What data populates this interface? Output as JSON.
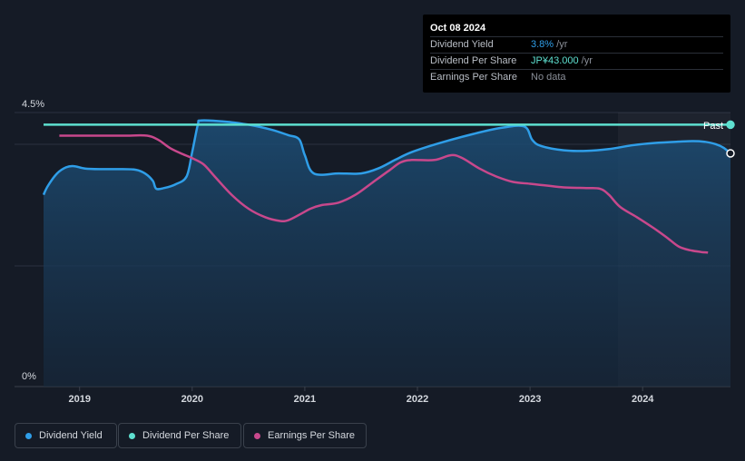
{
  "chart_data": {
    "type": "line",
    "y_axis_labels": [
      "4.5%",
      "0%"
    ],
    "ylim": [
      0,
      4.5
    ],
    "x_ticks": [
      "2019",
      "2020",
      "2021",
      "2022",
      "2023",
      "2024"
    ],
    "xlim": [
      2018.68,
      2024.78
    ],
    "past_label": "Past",
    "series": [
      {
        "name": "Dividend Yield",
        "color": "#2f9ee8",
        "unit": "%",
        "points": [
          [
            2018.68,
            3.15
          ],
          [
            2018.72,
            3.3
          ],
          [
            2018.8,
            3.5
          ],
          [
            2018.88,
            3.6
          ],
          [
            2018.95,
            3.62
          ],
          [
            2019.05,
            3.58
          ],
          [
            2019.2,
            3.57
          ],
          [
            2019.35,
            3.57
          ],
          [
            2019.5,
            3.56
          ],
          [
            2019.58,
            3.5
          ],
          [
            2019.65,
            3.38
          ],
          [
            2019.68,
            3.25
          ],
          [
            2019.75,
            3.26
          ],
          [
            2019.85,
            3.32
          ],
          [
            2019.95,
            3.45
          ],
          [
            2020.0,
            3.85
          ],
          [
            2020.05,
            4.3
          ],
          [
            2020.08,
            4.37
          ],
          [
            2020.3,
            4.35
          ],
          [
            2020.5,
            4.3
          ],
          [
            2020.7,
            4.22
          ],
          [
            2020.85,
            4.13
          ],
          [
            2020.95,
            4.06
          ],
          [
            2021.0,
            3.8
          ],
          [
            2021.08,
            3.5
          ],
          [
            2021.3,
            3.5
          ],
          [
            2021.5,
            3.5
          ],
          [
            2021.65,
            3.58
          ],
          [
            2021.8,
            3.72
          ],
          [
            2021.95,
            3.85
          ],
          [
            2022.2,
            4.0
          ],
          [
            2022.5,
            4.15
          ],
          [
            2022.75,
            4.25
          ],
          [
            2022.95,
            4.27
          ],
          [
            2023.02,
            4.05
          ],
          [
            2023.1,
            3.95
          ],
          [
            2023.3,
            3.88
          ],
          [
            2023.5,
            3.87
          ],
          [
            2023.7,
            3.9
          ],
          [
            2023.9,
            3.96
          ],
          [
            2024.1,
            4.0
          ],
          [
            2024.3,
            4.02
          ],
          [
            2024.45,
            4.03
          ],
          [
            2024.55,
            4.02
          ],
          [
            2024.65,
            3.98
          ],
          [
            2024.72,
            3.92
          ],
          [
            2024.78,
            3.83
          ]
        ]
      },
      {
        "name": "Dividend Per Share",
        "color": "#5ee0d0",
        "unit": "JP¥",
        "points": [
          [
            2018.68,
            4.3
          ],
          [
            2024.78,
            4.3
          ]
        ]
      },
      {
        "name": "Earnings Per Share",
        "color": "#c8488c",
        "relative_scale": true,
        "points": [
          [
            2018.82,
            4.12
          ],
          [
            2019.2,
            4.12
          ],
          [
            2019.4,
            4.12
          ],
          [
            2019.6,
            4.12
          ],
          [
            2019.7,
            4.05
          ],
          [
            2019.8,
            3.92
          ],
          [
            2019.9,
            3.83
          ],
          [
            2020.0,
            3.75
          ],
          [
            2020.1,
            3.65
          ],
          [
            2020.2,
            3.45
          ],
          [
            2020.35,
            3.15
          ],
          [
            2020.5,
            2.92
          ],
          [
            2020.65,
            2.78
          ],
          [
            2020.78,
            2.72
          ],
          [
            2020.85,
            2.73
          ],
          [
            2020.95,
            2.82
          ],
          [
            2021.05,
            2.92
          ],
          [
            2021.15,
            2.98
          ],
          [
            2021.3,
            3.02
          ],
          [
            2021.45,
            3.15
          ],
          [
            2021.6,
            3.35
          ],
          [
            2021.75,
            3.55
          ],
          [
            2021.85,
            3.68
          ],
          [
            2021.95,
            3.72
          ],
          [
            2022.15,
            3.72
          ],
          [
            2022.3,
            3.8
          ],
          [
            2022.4,
            3.75
          ],
          [
            2022.55,
            3.58
          ],
          [
            2022.7,
            3.45
          ],
          [
            2022.85,
            3.36
          ],
          [
            2023.0,
            3.33
          ],
          [
            2023.15,
            3.3
          ],
          [
            2023.3,
            3.27
          ],
          [
            2023.5,
            3.26
          ],
          [
            2023.62,
            3.25
          ],
          [
            2023.7,
            3.15
          ],
          [
            2023.8,
            2.95
          ],
          [
            2023.95,
            2.78
          ],
          [
            2024.1,
            2.6
          ],
          [
            2024.22,
            2.44
          ],
          [
            2024.32,
            2.3
          ],
          [
            2024.42,
            2.24
          ],
          [
            2024.52,
            2.21
          ],
          [
            2024.58,
            2.2
          ]
        ]
      }
    ],
    "past_region_start": 2023.78
  },
  "tooltip": {
    "date": "Oct 08 2024",
    "rows": [
      {
        "label": "Dividend Yield",
        "value": "3.8%",
        "suffix": " /yr"
      },
      {
        "label": "Dividend Per Share",
        "value": "JP¥43.000",
        "suffix": " /yr"
      },
      {
        "label": "Earnings Per Share",
        "value": "No data",
        "suffix": ""
      }
    ]
  },
  "legend": [
    {
      "label": "Dividend Yield",
      "color": "#2f9ee8"
    },
    {
      "label": "Dividend Per Share",
      "color": "#5ee0d0"
    },
    {
      "label": "Earnings Per Share",
      "color": "#c8488c"
    }
  ]
}
